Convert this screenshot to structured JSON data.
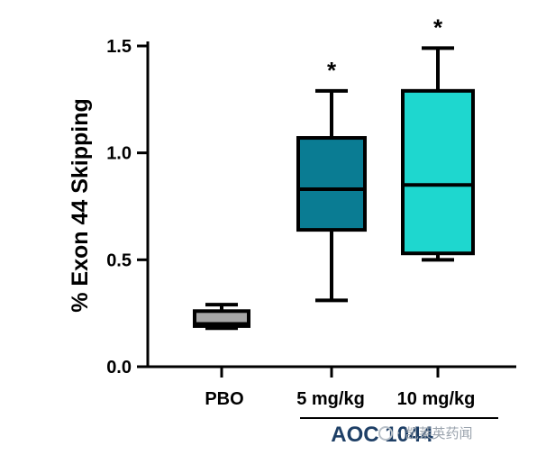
{
  "chart_data": {
    "type": "box",
    "ylabel": "% Exon 44 Skipping",
    "ylim": [
      0.0,
      1.5
    ],
    "yticks": [
      "0.0",
      "0.5",
      "1.0",
      "1.5"
    ],
    "categories": [
      "PBO",
      "5 mg/kg",
      "10 mg/kg"
    ],
    "group_label": "AOC 1044",
    "boxes": [
      {
        "name": "PBO",
        "min": 0.18,
        "q1": 0.19,
        "median": 0.2,
        "q3": 0.26,
        "max": 0.29,
        "color": "#a6a6a6",
        "significance": ""
      },
      {
        "name": "5 mg/kg",
        "min": 0.31,
        "q1": 0.64,
        "median": 0.83,
        "q3": 1.07,
        "max": 1.29,
        "color": "#0a7c93",
        "significance": "*"
      },
      {
        "name": "10 mg/kg",
        "min": 0.5,
        "q1": 0.53,
        "median": 0.85,
        "q3": 1.29,
        "max": 1.49,
        "color": "#1ed7cf",
        "significance": "*"
      }
    ]
  },
  "watermark": {
    "text": "· 凯莱英药闻"
  }
}
